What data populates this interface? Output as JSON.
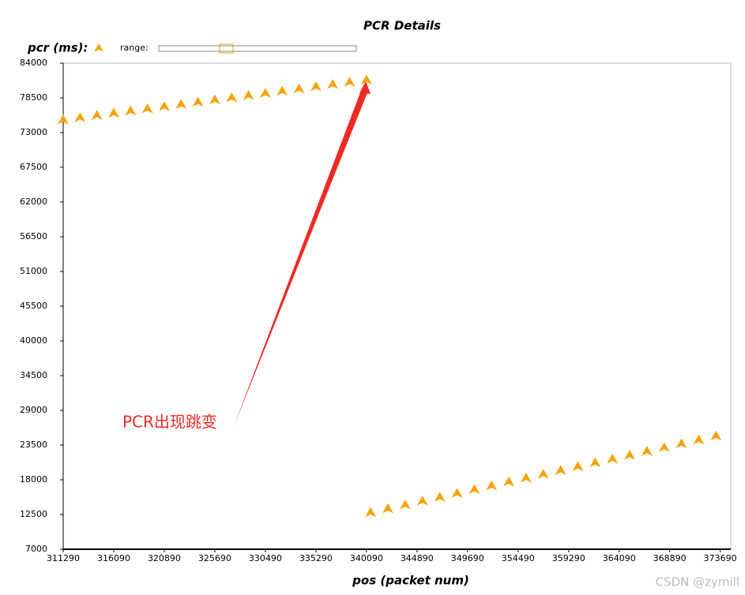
{
  "chart_data": {
    "type": "scatter",
    "title": "PCR Details",
    "xlabel": "pos (packet num)",
    "range_label": "range:",
    "annotation": "PCR出现跳变",
    "watermark": "CSDN @zymill",
    "xlim": [
      311290,
      374690
    ],
    "xticks": [
      311290,
      316090,
      320890,
      325690,
      330490,
      335290,
      340090,
      344890,
      349690,
      354490,
      359290,
      364090,
      368890,
      373690
    ],
    "ylim": [
      7000,
      84000
    ],
    "yticks": [
      7000,
      12500,
      18000,
      23500,
      29000,
      34500,
      40000,
      45500,
      51000,
      56500,
      62000,
      67500,
      73000,
      78500,
      84000
    ],
    "series": [
      {
        "name": "pcr (ms):",
        "color": "#f5a300",
        "x": [
          311290,
          312890,
          314490,
          316090,
          317690,
          319290,
          320890,
          322490,
          324090,
          325690,
          327290,
          328890,
          330490,
          332090,
          333690,
          335290,
          336890,
          338490,
          340090,
          340490,
          342130,
          343770,
          345410,
          347050,
          348690,
          350330,
          351970,
          353610,
          355250,
          356890,
          358530,
          360170,
          361810,
          363450,
          365090,
          366730,
          368370,
          370010,
          371650,
          373290
        ],
        "values": [
          75000,
          75350,
          75700,
          76050,
          76400,
          76750,
          77100,
          77450,
          77800,
          78150,
          78500,
          78850,
          79200,
          79550,
          79900,
          80250,
          80600,
          80950,
          81300,
          12800,
          13405,
          14010,
          14615,
          15220,
          15825,
          16430,
          17035,
          17640,
          18245,
          18850,
          19455,
          20060,
          20665,
          21270,
          21875,
          22480,
          23085,
          23690,
          24295,
          24900
        ]
      }
    ]
  }
}
